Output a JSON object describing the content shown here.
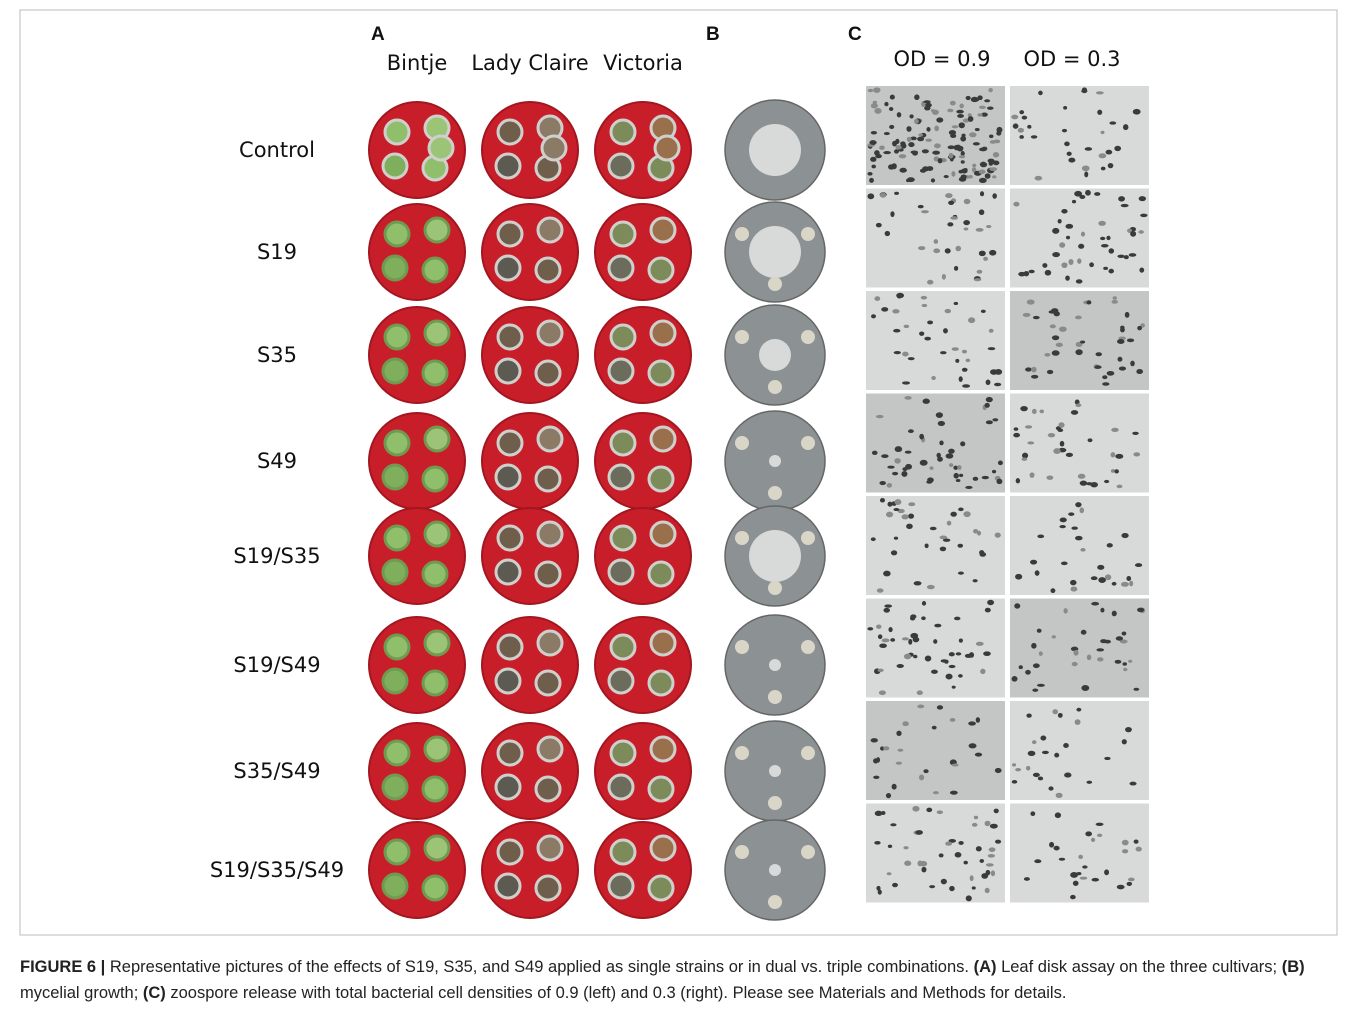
{
  "panels": {
    "a": {
      "label": "A",
      "columns": [
        "Bintje",
        "Lady Claire",
        "Victoria"
      ]
    },
    "b": {
      "label": "B"
    },
    "c": {
      "label": "C",
      "columns": [
        "OD = 0.9",
        "OD = 0.3"
      ]
    }
  },
  "rows": [
    "Control",
    "S19",
    "S35",
    "S49",
    "S19/S35",
    "S19/S49",
    "S35/S49",
    "S19/S35/S49"
  ],
  "caption": [
    {
      "text": "FIGURE 6 |",
      "bold": true
    },
    {
      "text": " Representative pictures of the effects of S19, S35, and S49 applied as single strains or in dual vs. triple combinations. ",
      "bold": false
    },
    {
      "text": "(A)",
      "bold": true
    },
    {
      "text": " Leaf disk assay on the three cultivars; ",
      "bold": false
    },
    {
      "text": "(B)",
      "bold": true
    },
    {
      "text": " mycelial growth; ",
      "bold": false
    },
    {
      "text": "(C)",
      "bold": true
    },
    {
      "text": " zoospore release with total bacterial cell densities of 0.9 (left) and 0.3 (right). Please see Materials and Methods for details.",
      "bold": false
    }
  ]
}
